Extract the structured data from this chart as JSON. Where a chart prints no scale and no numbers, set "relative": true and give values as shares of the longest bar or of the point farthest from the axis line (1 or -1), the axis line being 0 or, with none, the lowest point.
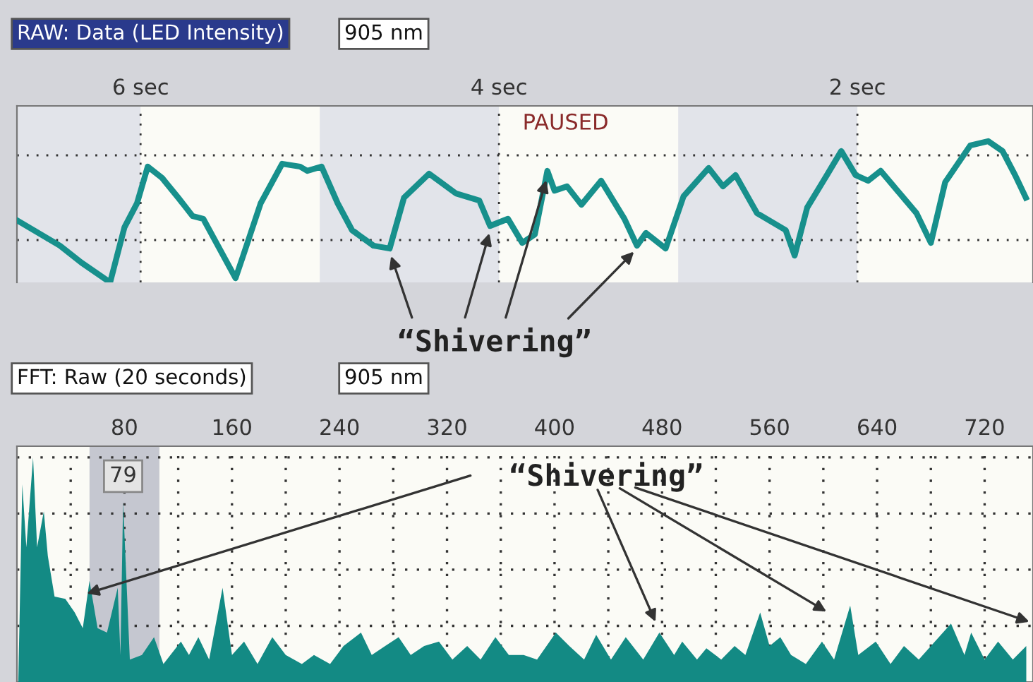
{
  "chart_data": [
    {
      "type": "line",
      "relative": true,
      "color": "#17908c",
      "grid": true,
      "tick_labels": "x",
      "line_style": "solid",
      "xlim": [
        6.69,
        1.02
      ],
      "xticks": [
        {
          "value": 6,
          "label": "6 sec"
        },
        {
          "value": 4,
          "label": "4 sec"
        },
        {
          "value": 2,
          "label": "2 sec"
        }
      ],
      "bands": [
        {
          "axis": "x",
          "from": 6.69,
          "to": 6.0,
          "color": "#e2e4ea"
        },
        {
          "axis": "x",
          "from": 5.0,
          "to": 4.0,
          "color": "#e2e4ea"
        },
        {
          "axis": "x",
          "from": 3.0,
          "to": 2.0,
          "color": "#e2e4ea"
        }
      ],
      "x": [
        6.69,
        6.53,
        6.45,
        6.33,
        6.17,
        6.09,
        6.02,
        5.96,
        5.88,
        5.79,
        5.71,
        5.65,
        5.47,
        5.43,
        5.33,
        5.21,
        5.11,
        5.07,
        4.99,
        4.9,
        4.82,
        4.7,
        4.61,
        4.53,
        4.39,
        4.24,
        4.11,
        4.05,
        3.95,
        3.87,
        3.8,
        3.73,
        3.69,
        3.62,
        3.54,
        3.43,
        3.3,
        3.23,
        3.18,
        3.07,
        2.97,
        2.83,
        2.75,
        2.68,
        2.56,
        2.4,
        2.35,
        2.28,
        2.17,
        2.09,
        2.01,
        1.94,
        1.87,
        1.75,
        1.67,
        1.59,
        1.51,
        1.37,
        1.27,
        1.19,
        1.12,
        1.06
      ],
      "values": [
        0.44,
        0.32,
        0.26,
        0.14,
        0,
        0.39,
        0.56,
        0.82,
        0.74,
        0.6,
        0.47,
        0.45,
        0.03,
        0.18,
        0.56,
        0.84,
        0.82,
        0.79,
        0.82,
        0.56,
        0.37,
        0.26,
        0.24,
        0.6,
        0.77,
        0.63,
        0.58,
        0.4,
        0.45,
        0.28,
        0.34,
        0.79,
        0.65,
        0.68,
        0.55,
        0.72,
        0.45,
        0.26,
        0.35,
        0.24,
        0.61,
        0.81,
        0.68,
        0.76,
        0.49,
        0.37,
        0.19,
        0.53,
        0.76,
        0.93,
        0.76,
        0.72,
        0.79,
        0.61,
        0.49,
        0.28,
        0.71,
        0.97,
        1.0,
        0.93,
        0.76,
        0.6
      ],
      "annotations": [
        "RAW: Data (LED Intensity)",
        "905 nm",
        "PAUSED",
        "“Shivering”"
      ]
    },
    {
      "type": "area",
      "relative": true,
      "color": "#138a84",
      "grid": true,
      "tick_labels": "x",
      "xlim": [
        0,
        756
      ],
      "xticks": [
        {
          "value": 40,
          "label": null
        },
        80,
        {
          "value": 120,
          "label": null
        },
        160,
        {
          "value": 200,
          "label": null
        },
        240,
        {
          "value": 280,
          "label": null
        },
        320,
        {
          "value": 360,
          "label": null
        },
        400,
        {
          "value": 440,
          "label": null
        },
        480,
        {
          "value": 520,
          "label": null
        },
        560,
        {
          "value": 600,
          "label": null
        },
        640,
        {
          "value": 680,
          "label": null
        },
        720
      ],
      "bands": [
        {
          "axis": "x",
          "from": 54,
          "to": 106,
          "color": "#c5c7d0"
        }
      ],
      "x": [
        1,
        4,
        7,
        12,
        15,
        20,
        23,
        28,
        36,
        43,
        49,
        54,
        60,
        67,
        75,
        77,
        79,
        84,
        93,
        102,
        109,
        122,
        128,
        135,
        143,
        153,
        160,
        169,
        179,
        190,
        200,
        212,
        221,
        233,
        243,
        256,
        264,
        274,
        284,
        293,
        303,
        314,
        324,
        335,
        345,
        356,
        366,
        377,
        387,
        401,
        411,
        422,
        431,
        442,
        453,
        466,
        478,
        489,
        495,
        506,
        513,
        524,
        534,
        542,
        553,
        560,
        568,
        576,
        587,
        599,
        608,
        620,
        626,
        639,
        650,
        660,
        671,
        683,
        695,
        705,
        710,
        720,
        730,
        741,
        751
      ],
      "values": [
        0,
        0.88,
        0.6,
        1.0,
        0.6,
        0.76,
        0.56,
        0.38,
        0.37,
        0.31,
        0.24,
        0.45,
        0.24,
        0.22,
        0.42,
        0.12,
        0.8,
        0.1,
        0.12,
        0.2,
        0.08,
        0.18,
        0.12,
        0.2,
        0.1,
        0.42,
        0.12,
        0.18,
        0.08,
        0.2,
        0.12,
        0.08,
        0.12,
        0.08,
        0.16,
        0.22,
        0.12,
        0.16,
        0.2,
        0.12,
        0.16,
        0.18,
        0.1,
        0.16,
        0.1,
        0.2,
        0.12,
        0.12,
        0.1,
        0.22,
        0.16,
        0.1,
        0.21,
        0.1,
        0.2,
        0.1,
        0.22,
        0.12,
        0.18,
        0.1,
        0.15,
        0.1,
        0.16,
        0.12,
        0.31,
        0.16,
        0.2,
        0.12,
        0.08,
        0.18,
        0.1,
        0.34,
        0.12,
        0.18,
        0.08,
        0.16,
        0.1,
        0.18,
        0.26,
        0.12,
        0.22,
        0.1,
        0.18,
        0.1,
        0.16
      ],
      "annotations": [
        "FFT: Raw (20 seconds)",
        "905 nm",
        {
          "text": "79",
          "x": 79,
          "y": 0.8
        },
        "“Shivering”"
      ]
    }
  ]
}
